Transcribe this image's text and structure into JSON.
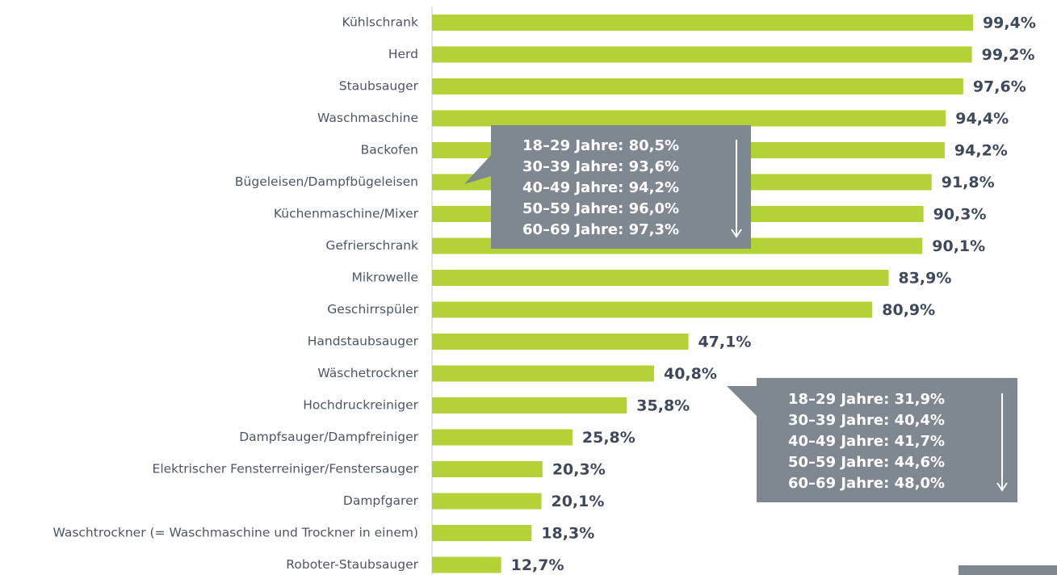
{
  "chart_data": {
    "type": "bar",
    "orientation": "horizontal",
    "color": "#b3d235",
    "xlim": [
      0,
      100
    ],
    "categories": [
      "Kühlschrank",
      "Herd",
      "Staubsauger",
      "Waschmaschine",
      "Backofen",
      "Bügeleisen/Dampfbügeleisen",
      "Küchenmaschine/Mixer",
      "Gefrierschrank",
      "Mikrowelle",
      "Geschirrspüler",
      "Handstaubsauger",
      "Wäschetrockner",
      "Hochdruckreiniger",
      "Dampfsauger/Dampfreiniger",
      "Elektrischer Fensterreiniger/Fenstersauger",
      "Dampfgarer",
      "Waschtrockner (= Waschmaschine und Trockner in einem)",
      "Roboter-Staubsauger"
    ],
    "values": [
      99.4,
      99.2,
      97.6,
      94.4,
      94.2,
      91.8,
      90.3,
      90.1,
      83.9,
      80.9,
      47.1,
      40.8,
      35.8,
      25.8,
      20.3,
      20.1,
      18.3,
      12.7
    ],
    "value_labels": [
      "99,4%",
      "99,2%",
      "97,6%",
      "94,4%",
      "94,2%",
      "91,8%",
      "90,3%",
      "90,1%",
      "83,9%",
      "80,9%",
      "47,1%",
      "40,8%",
      "35,8%",
      "25,8%",
      "20,3%",
      "20,1%",
      "18,3%",
      "12,7%"
    ],
    "annotations": [
      [
        "18–29 Jahre: 80,5%",
        "30–39 Jahre: 93,6%",
        "40–49 Jahre: 94,2%",
        "50–59 Jahre: 96,0%",
        "60–69 Jahre: 97,3%"
      ],
      [
        "18–29 Jahre: 31,9%",
        "30–39 Jahre: 40,4%",
        "40–49 Jahre: 41,7%",
        "50–59 Jahre: 44,6%",
        "60–69 Jahre: 48,0%"
      ]
    ]
  }
}
